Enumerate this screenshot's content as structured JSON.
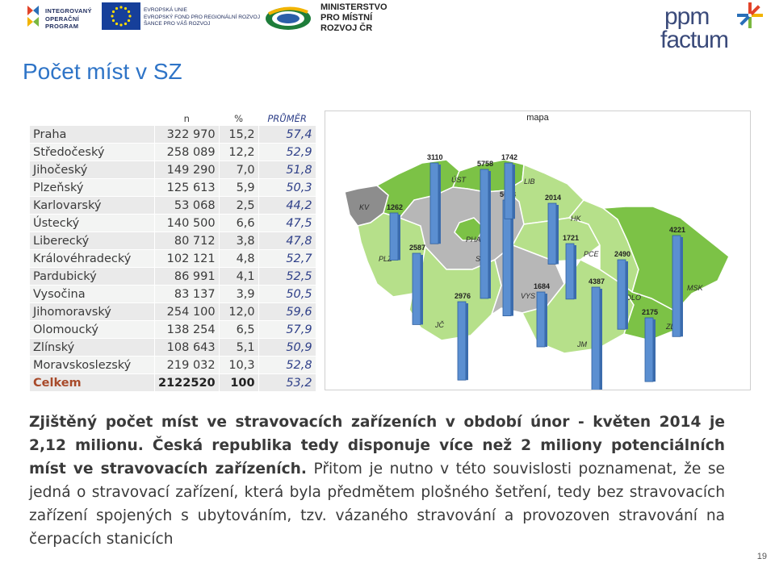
{
  "header": {
    "iop_logo_lines": [
      "INTEGROVANÝ",
      "OPERAČNÍ",
      "PROGRAM"
    ],
    "eu_logo_lines": [
      "EVROPSKÁ UNIE",
      "EVROPSKÝ FOND PRO REGIONÁLNÍ ROZVOJ",
      "ŠANCE PRO VÁŠ ROZVOJ"
    ],
    "mmr_logo_lines": [
      "MINISTERSTVO",
      "PRO MÍSTNÍ",
      "ROZVOJ ČR"
    ],
    "ppm_logo_lines": [
      "ppm",
      "factum"
    ]
  },
  "page_title": "Počet míst v SZ",
  "table": {
    "headers": [
      "",
      "n",
      "%",
      "PRŮMĚR"
    ],
    "rows": [
      [
        "Praha",
        "322 970",
        "15,2",
        "57,4"
      ],
      [
        "Středočeský",
        "258 089",
        "12,2",
        "52,9"
      ],
      [
        "Jihočeský",
        "149 290",
        "7,0",
        "51,8"
      ],
      [
        "Plzeňský",
        "125 613",
        "5,9",
        "50,3"
      ],
      [
        "Karlovarský",
        "53 068",
        "2,5",
        "44,2"
      ],
      [
        "Ústecký",
        "140 500",
        "6,6",
        "47,5"
      ],
      [
        "Liberecký",
        "80 712",
        "3,8",
        "47,8"
      ],
      [
        "Královéhradecký",
        "102 121",
        "4,8",
        "52,7"
      ],
      [
        "Pardubický",
        "86 991",
        "4,1",
        "52,5"
      ],
      [
        "Vysočina",
        "83 137",
        "3,9",
        "50,5"
      ],
      [
        "Jihomoravský",
        "254 100",
        "12,0",
        "59,6"
      ],
      [
        "Olomoucký",
        "138 254",
        "6,5",
        "57,9"
      ],
      [
        "Zlínský",
        "108 643",
        "5,1",
        "50,9"
      ],
      [
        "Moravskoslezský",
        "219 032",
        "10,3",
        "52,8"
      ]
    ],
    "total": [
      "Celkem",
      "2122520",
      "100",
      "53,2"
    ]
  },
  "map": {
    "title": "mapa",
    "regions": [
      {
        "code": "KV",
        "value": "1262"
      },
      {
        "code": "PLZ",
        "value": "2587"
      },
      {
        "code": "ÚST",
        "value": "3110"
      },
      {
        "code": "PHA",
        "value": "5758"
      },
      {
        "code": "STČ",
        "value": "5033"
      },
      {
        "code": "LIB",
        "value": "1742"
      },
      {
        "code": "JČ",
        "value": "2976"
      },
      {
        "code": "HK",
        "value": "2014"
      },
      {
        "code": "PCE",
        "value": "1721"
      },
      {
        "code": "VYS",
        "value": "1684"
      },
      {
        "code": "JM",
        "value": "4387"
      },
      {
        "code": "OLO",
        "value": "2490"
      },
      {
        "code": "ZLI",
        "value": "2175"
      },
      {
        "code": "MSK",
        "value": "4221"
      }
    ],
    "colors": {
      "light_green": "#b6e08a",
      "dark_green": "#7cc246",
      "gray": "#b7b7b7",
      "dark_gray": "#8d8d8d",
      "bar": "#5b8fd1"
    }
  },
  "paragraph": {
    "bold": "Zjištěný počet míst ve stravovacích zařízeních v období únor - květen 2014 je 2,12 milionu. Česká republika tedy disponuje více než 2 miliony potenciálních míst ve stravovacích zařízeních.",
    "normal": " Přitom je nutno v této souvislosti poznamenat, že se jedná o stravovací zařízení, která byla předmětem plošného šetření, tedy bez stravovacích zařízení spojených s ubytováním, tzv. vázaného stravování a provozoven stravování na čerpacích stanicích"
  },
  "page_number": "19"
}
